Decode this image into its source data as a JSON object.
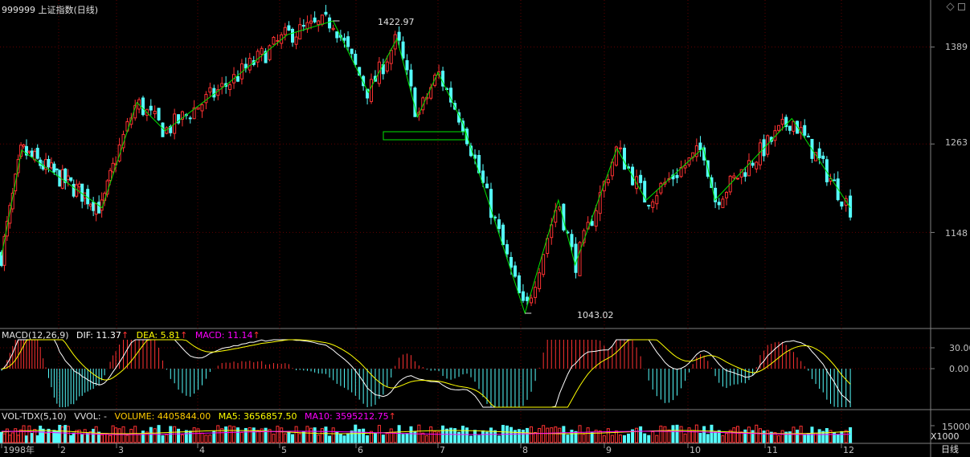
{
  "title": "999999 上证指数(日线)",
  "period_button": "日线",
  "price_axis": {
    "ticks": [
      "1389",
      "1263",
      "1148"
    ],
    "tick_values": [
      1389,
      1263,
      1148
    ]
  },
  "high_label": "1422.97",
  "low_label": "1043.02",
  "macd": {
    "name": "MACD(12,26,9)",
    "dif": "DIF: 11.37",
    "dea": "DEA: 5.81",
    "macd": "MACD: 11.14",
    "ticks": [
      "30.00",
      "0.00"
    ]
  },
  "volume": {
    "name": "VOL-TDX(5,10)",
    "vvol": "VVOL: -",
    "vol": "VOLUME: 4405844.00",
    "ma5": "MA5: 3656857.50",
    "ma10": "MA10: 3595212.75",
    "ticks": [
      "15000"
    ],
    "unit": "X1000"
  },
  "months": [
    "1998年",
    "2",
    "3",
    "4",
    "5",
    "6",
    "7",
    "8",
    "9",
    "10",
    "11",
    "12"
  ],
  "colors": {
    "up": "#ff3232",
    "down": "#54fcfc",
    "zigzag": "#00e400",
    "dif": "#ffffff",
    "dea": "#ffff00",
    "macd": "#ff00ff",
    "grid": "#3a0000",
    "border": "#808080",
    "axis_text": "#c0c0c0"
  },
  "chart_data": {
    "type": "candlestick",
    "ylim": [
      1030,
      1430
    ],
    "zigzag_points": [
      {
        "month": 1.0,
        "value": 1118
      },
      {
        "month": 1.35,
        "value": 1255
      },
      {
        "month": 2.75,
        "value": 1180
      },
      {
        "month": 3.25,
        "value": 1317
      },
      {
        "month": 3.6,
        "value": 1280
      },
      {
        "month": 4.35,
        "value": 1340
      },
      {
        "month": 5.1,
        "value": 1405
      },
      {
        "month": 5.7,
        "value": 1422.97
      },
      {
        "month": 6.15,
        "value": 1330
      },
      {
        "month": 6.5,
        "value": 1400
      },
      {
        "month": 6.75,
        "value": 1298
      },
      {
        "month": 7.0,
        "value": 1356
      },
      {
        "month": 7.3,
        "value": 1290
      },
      {
        "month": 8.05,
        "value": 1043.02
      },
      {
        "month": 8.45,
        "value": 1190
      },
      {
        "month": 8.65,
        "value": 1106
      },
      {
        "month": 9.15,
        "value": 1257
      },
      {
        "month": 9.5,
        "value": 1190
      },
      {
        "month": 10.2,
        "value": 1258
      },
      {
        "month": 10.35,
        "value": 1190
      },
      {
        "month": 11.35,
        "value": 1296
      },
      {
        "month": 12.1,
        "value": 1180
      }
    ],
    "highlight_box": "green rectangle near 6.5 month, ~1263 level"
  }
}
